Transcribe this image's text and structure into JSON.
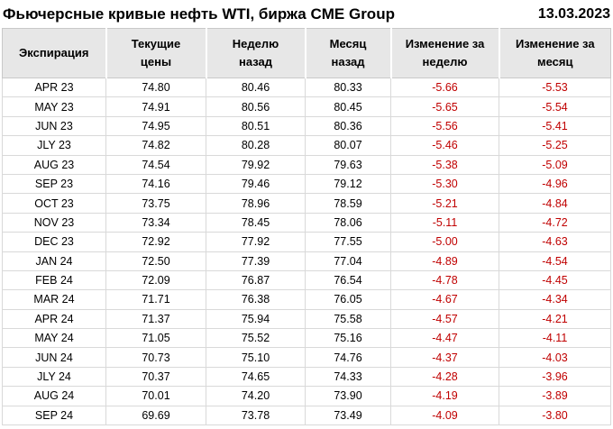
{
  "page": {
    "title": "Фьючерсные кривые нефть WTI, биржа CME Group",
    "date": "13.03.2023"
  },
  "table": {
    "columns": [
      "Экспирация",
      "Текущие\nцены",
      "Неделю\nназад",
      "Месяц\nназад",
      "Изменение за\nнеделю",
      "Изменение за\nмесяц"
    ]
  },
  "colors": {
    "negative_value": "#c00000",
    "header_background": "#e7e7e7",
    "grid_border": "#d9d9d9",
    "text": "#000000"
  },
  "chart_data": {
    "type": "table",
    "title": "Фьючерсные кривые нефть WTI, биржа CME Group",
    "date": "13.03.2023",
    "categories": [
      "APR 23",
      "MAY 23",
      "JUN 23",
      "JLY 23",
      "AUG 23",
      "SEP 23",
      "OCT 23",
      "NOV 23",
      "DEC 23",
      "JAN 24",
      "FEB 24",
      "MAR 24",
      "APR 24",
      "MAY 24",
      "JUN 24",
      "JLY 24",
      "AUG 24",
      "SEP 24"
    ],
    "series": [
      {
        "name": "Текущие цены",
        "values": [
          74.8,
          74.91,
          74.95,
          74.82,
          74.54,
          74.16,
          73.75,
          73.34,
          72.92,
          72.5,
          72.09,
          71.71,
          71.37,
          71.05,
          70.73,
          70.37,
          70.01,
          69.69
        ]
      },
      {
        "name": "Неделю назад",
        "values": [
          80.46,
          80.56,
          80.51,
          80.28,
          79.92,
          79.46,
          78.96,
          78.45,
          77.92,
          77.39,
          76.87,
          76.38,
          75.94,
          75.52,
          75.1,
          74.65,
          74.2,
          73.78
        ]
      },
      {
        "name": "Месяц назад",
        "values": [
          80.33,
          80.45,
          80.36,
          80.07,
          79.63,
          79.12,
          78.59,
          78.06,
          77.55,
          77.04,
          76.54,
          76.05,
          75.58,
          75.16,
          74.76,
          74.33,
          73.9,
          73.49
        ]
      },
      {
        "name": "Изменение за неделю",
        "values": [
          -5.66,
          -5.65,
          -5.56,
          -5.46,
          -5.38,
          -5.3,
          -5.21,
          -5.11,
          -5.0,
          -4.89,
          -4.78,
          -4.67,
          -4.57,
          -4.47,
          -4.37,
          -4.28,
          -4.19,
          -4.09
        ]
      },
      {
        "name": "Изменение за месяц",
        "values": [
          -5.53,
          -5.54,
          -5.41,
          -5.25,
          -5.09,
          -4.96,
          -4.84,
          -4.72,
          -4.63,
          -4.54,
          -4.45,
          -4.34,
          -4.21,
          -4.11,
          -4.03,
          -3.96,
          -3.89,
          -3.8
        ]
      }
    ]
  }
}
